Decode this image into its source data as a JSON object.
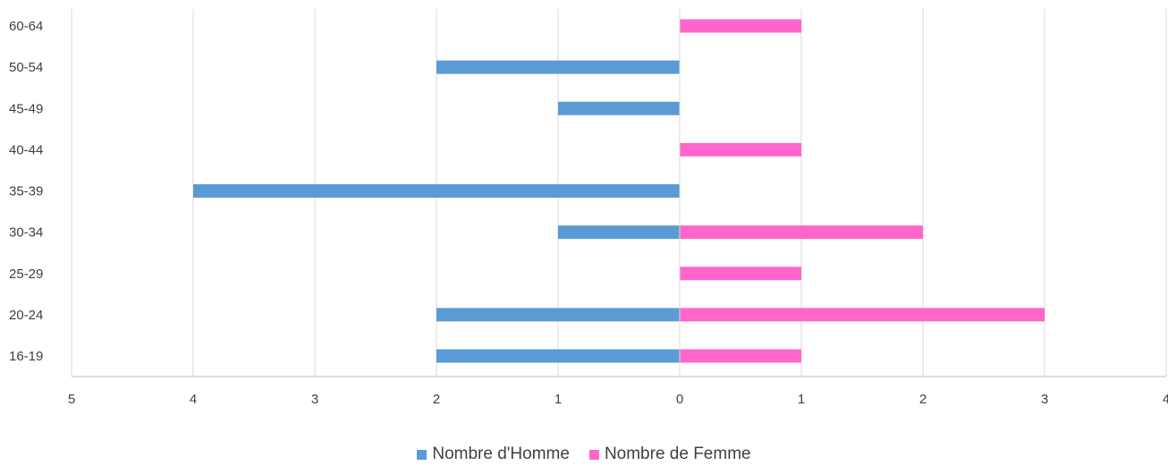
{
  "chart_data": {
    "type": "bar",
    "orientation": "horizontal-diverging",
    "categories": [
      "16-19",
      "20-24",
      "25-29",
      "30-34",
      "35-39",
      "40-44",
      "45-49",
      "50-54",
      "60-64"
    ],
    "series": [
      {
        "name": "Nombre d'Homme",
        "color": "#5b9bd5",
        "direction": "left",
        "values": [
          2,
          2,
          0,
          1,
          4,
          0,
          1,
          2,
          0
        ]
      },
      {
        "name": "Nombre de Femme",
        "color": "#ff66cc",
        "direction": "right",
        "values": [
          1,
          3,
          1,
          2,
          0,
          1,
          0,
          0,
          1
        ]
      }
    ],
    "xlim": [
      -5,
      4
    ],
    "x_tick_labels": [
      "5",
      "4",
      "3",
      "2",
      "1",
      "0",
      "1",
      "2",
      "3",
      "4"
    ],
    "grid": "vertical",
    "legend_position": "bottom"
  },
  "colors": {
    "grid": "#d9d9d9",
    "axis": "#bfbfbf",
    "text": "#404040"
  }
}
